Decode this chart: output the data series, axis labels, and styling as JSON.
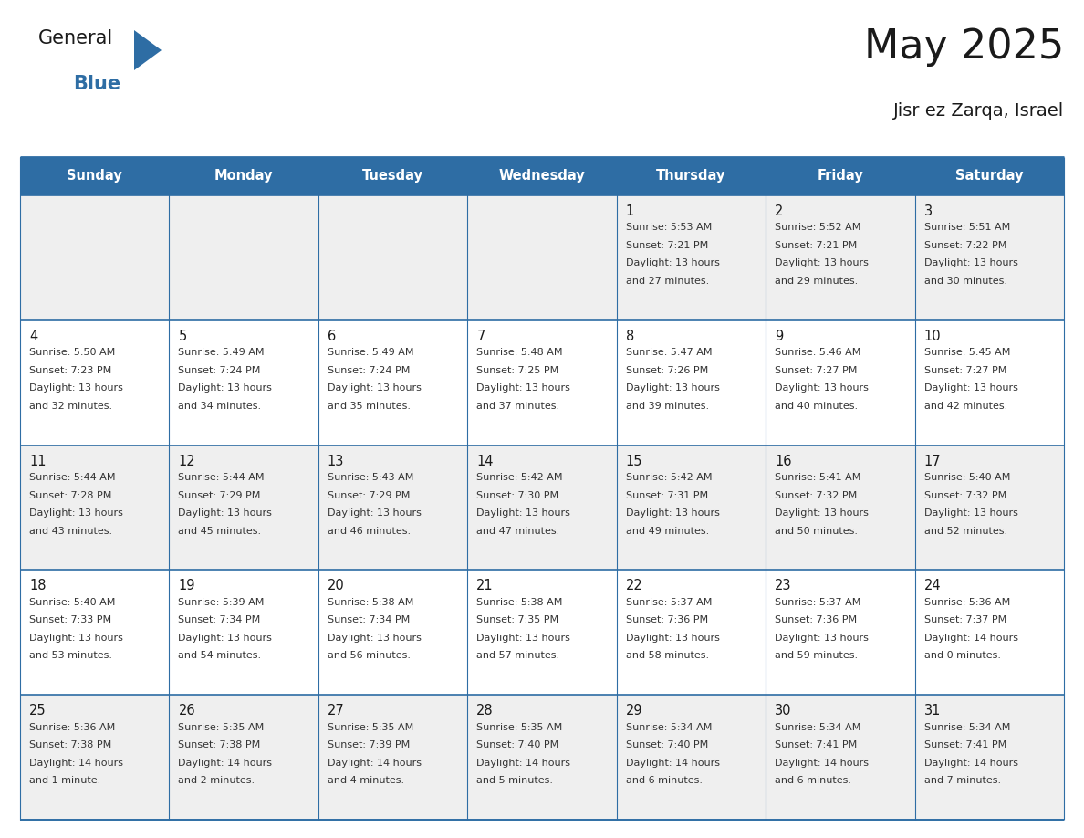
{
  "title": "May 2025",
  "subtitle": "Jisr ez Zarqa, Israel",
  "header_bg": "#2E6DA4",
  "header_text_color": "#FFFFFF",
  "cell_bg_light": "#EFEFEF",
  "cell_bg_white": "#FFFFFF",
  "border_color": "#2E6DA4",
  "days_of_week": [
    "Sunday",
    "Monday",
    "Tuesday",
    "Wednesday",
    "Thursday",
    "Friday",
    "Saturday"
  ],
  "title_color": "#1a1a1a",
  "subtitle_color": "#1a1a1a",
  "cell_text_color": "#333333",
  "day_num_color": "#1a1a1a",
  "logo_general_color": "#1a1a1a",
  "logo_blue_color": "#2E6DA4",
  "weeks": [
    [
      {
        "day": "",
        "sunrise": "",
        "sunset": "",
        "daylight": ""
      },
      {
        "day": "",
        "sunrise": "",
        "sunset": "",
        "daylight": ""
      },
      {
        "day": "",
        "sunrise": "",
        "sunset": "",
        "daylight": ""
      },
      {
        "day": "",
        "sunrise": "",
        "sunset": "",
        "daylight": ""
      },
      {
        "day": "1",
        "sunrise": "5:53 AM",
        "sunset": "7:21 PM",
        "daylight": "13 hours",
        "daylight2": "and 27 minutes."
      },
      {
        "day": "2",
        "sunrise": "5:52 AM",
        "sunset": "7:21 PM",
        "daylight": "13 hours",
        "daylight2": "and 29 minutes."
      },
      {
        "day": "3",
        "sunrise": "5:51 AM",
        "sunset": "7:22 PM",
        "daylight": "13 hours",
        "daylight2": "and 30 minutes."
      }
    ],
    [
      {
        "day": "4",
        "sunrise": "5:50 AM",
        "sunset": "7:23 PM",
        "daylight": "13 hours",
        "daylight2": "and 32 minutes."
      },
      {
        "day": "5",
        "sunrise": "5:49 AM",
        "sunset": "7:24 PM",
        "daylight": "13 hours",
        "daylight2": "and 34 minutes."
      },
      {
        "day": "6",
        "sunrise": "5:49 AM",
        "sunset": "7:24 PM",
        "daylight": "13 hours",
        "daylight2": "and 35 minutes."
      },
      {
        "day": "7",
        "sunrise": "5:48 AM",
        "sunset": "7:25 PM",
        "daylight": "13 hours",
        "daylight2": "and 37 minutes."
      },
      {
        "day": "8",
        "sunrise": "5:47 AM",
        "sunset": "7:26 PM",
        "daylight": "13 hours",
        "daylight2": "and 39 minutes."
      },
      {
        "day": "9",
        "sunrise": "5:46 AM",
        "sunset": "7:27 PM",
        "daylight": "13 hours",
        "daylight2": "and 40 minutes."
      },
      {
        "day": "10",
        "sunrise": "5:45 AM",
        "sunset": "7:27 PM",
        "daylight": "13 hours",
        "daylight2": "and 42 minutes."
      }
    ],
    [
      {
        "day": "11",
        "sunrise": "5:44 AM",
        "sunset": "7:28 PM",
        "daylight": "13 hours",
        "daylight2": "and 43 minutes."
      },
      {
        "day": "12",
        "sunrise": "5:44 AM",
        "sunset": "7:29 PM",
        "daylight": "13 hours",
        "daylight2": "and 45 minutes."
      },
      {
        "day": "13",
        "sunrise": "5:43 AM",
        "sunset": "7:29 PM",
        "daylight": "13 hours",
        "daylight2": "and 46 minutes."
      },
      {
        "day": "14",
        "sunrise": "5:42 AM",
        "sunset": "7:30 PM",
        "daylight": "13 hours",
        "daylight2": "and 47 minutes."
      },
      {
        "day": "15",
        "sunrise": "5:42 AM",
        "sunset": "7:31 PM",
        "daylight": "13 hours",
        "daylight2": "and 49 minutes."
      },
      {
        "day": "16",
        "sunrise": "5:41 AM",
        "sunset": "7:32 PM",
        "daylight": "13 hours",
        "daylight2": "and 50 minutes."
      },
      {
        "day": "17",
        "sunrise": "5:40 AM",
        "sunset": "7:32 PM",
        "daylight": "13 hours",
        "daylight2": "and 52 minutes."
      }
    ],
    [
      {
        "day": "18",
        "sunrise": "5:40 AM",
        "sunset": "7:33 PM",
        "daylight": "13 hours",
        "daylight2": "and 53 minutes."
      },
      {
        "day": "19",
        "sunrise": "5:39 AM",
        "sunset": "7:34 PM",
        "daylight": "13 hours",
        "daylight2": "and 54 minutes."
      },
      {
        "day": "20",
        "sunrise": "5:38 AM",
        "sunset": "7:34 PM",
        "daylight": "13 hours",
        "daylight2": "and 56 minutes."
      },
      {
        "day": "21",
        "sunrise": "5:38 AM",
        "sunset": "7:35 PM",
        "daylight": "13 hours",
        "daylight2": "and 57 minutes."
      },
      {
        "day": "22",
        "sunrise": "5:37 AM",
        "sunset": "7:36 PM",
        "daylight": "13 hours",
        "daylight2": "and 58 minutes."
      },
      {
        "day": "23",
        "sunrise": "5:37 AM",
        "sunset": "7:36 PM",
        "daylight": "13 hours",
        "daylight2": "and 59 minutes."
      },
      {
        "day": "24",
        "sunrise": "5:36 AM",
        "sunset": "7:37 PM",
        "daylight": "14 hours",
        "daylight2": "and 0 minutes."
      }
    ],
    [
      {
        "day": "25",
        "sunrise": "5:36 AM",
        "sunset": "7:38 PM",
        "daylight": "14 hours",
        "daylight2": "and 1 minute."
      },
      {
        "day": "26",
        "sunrise": "5:35 AM",
        "sunset": "7:38 PM",
        "daylight": "14 hours",
        "daylight2": "and 2 minutes."
      },
      {
        "day": "27",
        "sunrise": "5:35 AM",
        "sunset": "7:39 PM",
        "daylight": "14 hours",
        "daylight2": "and 4 minutes."
      },
      {
        "day": "28",
        "sunrise": "5:35 AM",
        "sunset": "7:40 PM",
        "daylight": "14 hours",
        "daylight2": "and 5 minutes."
      },
      {
        "day": "29",
        "sunrise": "5:34 AM",
        "sunset": "7:40 PM",
        "daylight": "14 hours",
        "daylight2": "and 6 minutes."
      },
      {
        "day": "30",
        "sunrise": "5:34 AM",
        "sunset": "7:41 PM",
        "daylight": "14 hours",
        "daylight2": "and 6 minutes."
      },
      {
        "day": "31",
        "sunrise": "5:34 AM",
        "sunset": "7:41 PM",
        "daylight": "14 hours",
        "daylight2": "and 7 minutes."
      }
    ]
  ]
}
